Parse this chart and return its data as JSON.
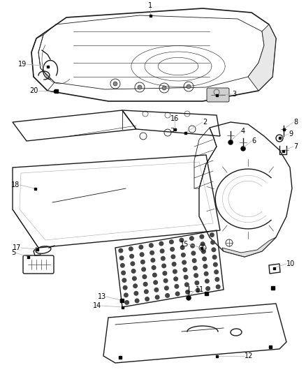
{
  "background_color": "#ffffff",
  "line_color": "#1a1a1a",
  "gray_color": "#555555",
  "light_gray": "#aaaaaa",
  "fig_width": 4.38,
  "fig_height": 5.33,
  "dpi": 100,
  "label_fontsize": 7.0
}
